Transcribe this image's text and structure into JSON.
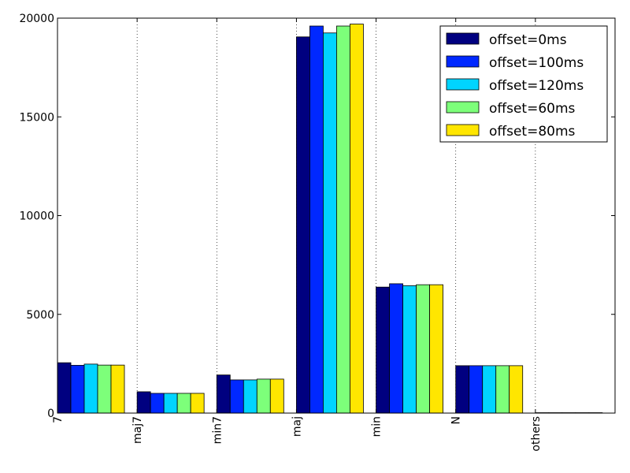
{
  "chart_data": {
    "type": "bar",
    "title": "",
    "xlabel": "",
    "ylabel": "",
    "categories": [
      "7",
      "maj7",
      "min7",
      "maj",
      "min",
      "N",
      "others"
    ],
    "ylim": [
      0,
      20000
    ],
    "yticks": [
      0,
      5000,
      10000,
      15000,
      20000
    ],
    "yticks_labels": [
      "0",
      "5000",
      "10000",
      "15000",
      "20000"
    ],
    "grid": "x dotted",
    "legend_position": "top-right",
    "series": [
      {
        "name": "offset=0ms",
        "color": "#000080",
        "values": [
          2550,
          1080,
          1930,
          19050,
          6380,
          2400,
          20
        ]
      },
      {
        "name": "offset=100ms",
        "color": "#0028ff",
        "values": [
          2420,
          1000,
          1680,
          19600,
          6550,
          2400,
          20
        ]
      },
      {
        "name": "offset=120ms",
        "color": "#00d4ff",
        "values": [
          2480,
          1000,
          1680,
          19250,
          6450,
          2400,
          20
        ]
      },
      {
        "name": "offset=60ms",
        "color": "#7dff7a",
        "values": [
          2430,
          1000,
          1720,
          19600,
          6500,
          2400,
          20
        ]
      },
      {
        "name": "offset=80ms",
        "color": "#ffe600",
        "values": [
          2430,
          1000,
          1720,
          19700,
          6500,
          2400,
          20
        ]
      }
    ]
  }
}
